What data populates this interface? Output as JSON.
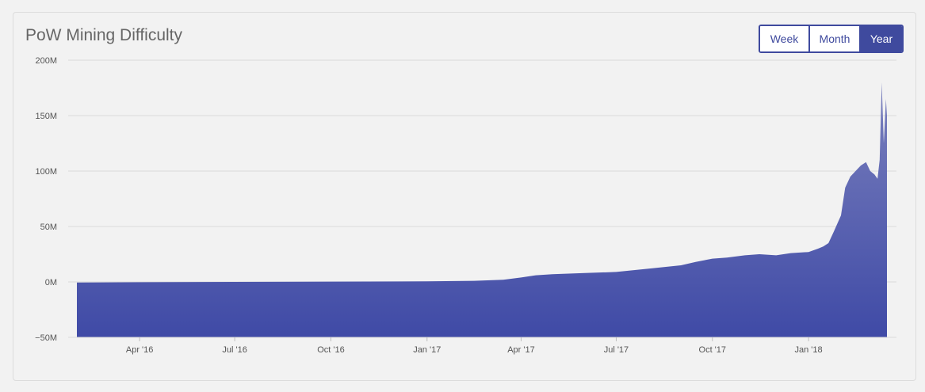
{
  "header": {
    "title": "PoW Mining Difficulty"
  },
  "range_selector": {
    "options": [
      "Week",
      "Month",
      "Year"
    ],
    "active": "Year"
  },
  "colors": {
    "fill_top": "#7a80bd",
    "fill_bottom": "#3f4aa6",
    "accent": "#3f4a9e",
    "grid": "#d9d9d9"
  },
  "chart_data": {
    "type": "area",
    "title": "PoW Mining Difficulty",
    "xlabel": "",
    "ylabel": "",
    "ylim": [
      -50000000,
      200000000
    ],
    "yticks": [
      -50000000,
      0,
      50000000,
      100000000,
      150000000,
      200000000
    ],
    "ytick_labels": [
      "−50M",
      "0M",
      "50M",
      "100M",
      "150M",
      "200M"
    ],
    "xlim": [
      "2016-02-01",
      "2018-03-17"
    ],
    "xticks": [
      "2016-04-01",
      "2016-07-01",
      "2016-10-01",
      "2017-01-01",
      "2017-04-01",
      "2017-07-01",
      "2017-10-01",
      "2018-01-01"
    ],
    "xtick_labels": [
      "Apr '16",
      "Jul '16",
      "Oct '16",
      "Jan '17",
      "Apr '17",
      "Jul '17",
      "Oct '17",
      "Jan '18"
    ],
    "grid": true,
    "legend": "none",
    "series": [
      {
        "x": [
          "2016-02-01",
          "2016-04-01",
          "2016-07-01",
          "2016-10-01",
          "2017-01-01",
          "2017-02-15",
          "2017-03-15",
          "2017-04-01",
          "2017-04-15",
          "2017-05-01",
          "2017-06-01",
          "2017-07-01",
          "2017-08-01",
          "2017-09-01",
          "2017-09-15",
          "2017-10-01",
          "2017-10-15",
          "2017-11-01",
          "2017-11-15",
          "2017-12-01",
          "2017-12-15",
          "2018-01-01",
          "2018-01-10",
          "2018-01-15",
          "2018-01-20",
          "2018-01-25",
          "2018-02-01",
          "2018-02-05",
          "2018-02-10",
          "2018-02-15",
          "2018-02-20",
          "2018-02-25",
          "2018-03-01",
          "2018-03-05",
          "2018-03-08",
          "2018-03-10",
          "2018-03-12",
          "2018-03-14",
          "2018-03-16",
          "2018-03-17"
        ],
        "values": [
          -500000,
          -300000,
          0,
          300000,
          500000,
          1000000,
          2000000,
          4000000,
          6000000,
          7000000,
          8000000,
          9000000,
          12000000,
          15000000,
          18000000,
          21000000,
          22000000,
          24000000,
          25000000,
          24000000,
          26000000,
          27000000,
          30000000,
          32000000,
          35000000,
          45000000,
          60000000,
          85000000,
          95000000,
          100000000,
          105000000,
          108000000,
          100000000,
          97000000,
          93000000,
          110000000,
          180000000,
          125000000,
          165000000,
          150000000
        ]
      }
    ]
  }
}
